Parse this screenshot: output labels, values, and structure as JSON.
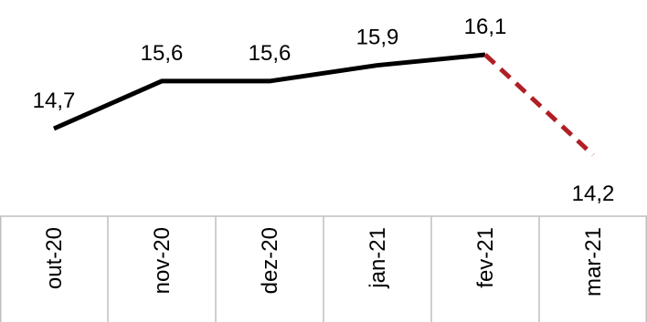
{
  "chart_data": {
    "type": "line",
    "categories": [
      "out-20",
      "nov-20",
      "dez-20",
      "jan-21",
      "fev-21",
      "mar-21"
    ],
    "series": [
      {
        "values": [
          14.7,
          15.6,
          15.6,
          15.9,
          16.1,
          14.2
        ],
        "labels": [
          "14,7",
          "15,6",
          "15,6",
          "15,9",
          "16,1",
          "14,2"
        ],
        "color": "#000000",
        "projection_color": "#b01f24",
        "projection_from_index": 4
      }
    ],
    "grid": false,
    "legend": "none"
  }
}
